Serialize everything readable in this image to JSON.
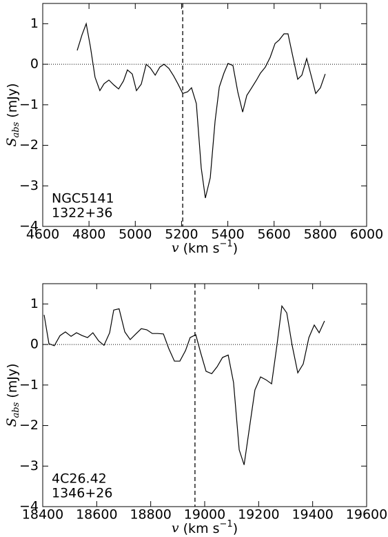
{
  "chart_data": [
    {
      "type": "line",
      "color": "#000000",
      "xlabel": [
        "v",
        " (km s",
        "−1",
        ")"
      ],
      "ylabel": [
        "S",
        "abs",
        " (mJy)"
      ],
      "annotations": [
        "NGC5141",
        "1322+36"
      ],
      "reference_x": 5205,
      "reference_y": 0,
      "x": [
        4749,
        4770,
        4788,
        4806,
        4826,
        4847,
        4865,
        4886,
        4907,
        4928,
        4949,
        4966,
        4987,
        5005,
        5026,
        5047,
        5065,
        5086,
        5106,
        5124,
        5145,
        5166,
        5184,
        5205,
        5226,
        5243,
        5264,
        5285,
        5303,
        5324,
        5345,
        5363,
        5383,
        5401,
        5422,
        5443,
        5464,
        5482,
        5503,
        5524,
        5541,
        5562,
        5583,
        5604,
        5622,
        5643,
        5660,
        5681,
        5702,
        5720,
        5741,
        5762,
        5780,
        5800,
        5821
      ],
      "values": [
        0.34,
        0.73,
        1.0,
        0.43,
        -0.32,
        -0.65,
        -0.48,
        -0.39,
        -0.51,
        -0.61,
        -0.41,
        -0.14,
        -0.24,
        -0.65,
        -0.49,
        0.0,
        -0.09,
        -0.27,
        -0.07,
        0.0,
        -0.1,
        -0.29,
        -0.48,
        -0.72,
        -0.68,
        -0.58,
        -0.97,
        -2.56,
        -3.3,
        -2.8,
        -1.4,
        -0.56,
        -0.22,
        0.02,
        -0.03,
        -0.68,
        -1.18,
        -0.77,
        -0.58,
        -0.39,
        -0.22,
        -0.07,
        0.17,
        0.51,
        0.6,
        0.75,
        0.75,
        0.19,
        -0.37,
        -0.27,
        0.14,
        -0.32,
        -0.72,
        -0.58,
        -0.24
      ],
      "xlim": [
        4600,
        6000
      ],
      "xticks": [
        4600,
        4800,
        5000,
        5200,
        5400,
        5600,
        5800,
        6000
      ],
      "ylim": [
        -4,
        1.5
      ],
      "yticks": [
        {
          "value": -4,
          "label": "−4"
        },
        {
          "value": -3,
          "label": "−3"
        },
        {
          "value": -2,
          "label": "−2"
        },
        {
          "value": -1,
          "label": "−1"
        },
        0,
        1
      ]
    },
    {
      "type": "line",
      "color": "#000000",
      "xlabel": [
        "v",
        " (km s",
        "−1",
        ")"
      ],
      "ylabel": [
        "S",
        "abs",
        " (mJy)"
      ],
      "annotations": [
        "4C26.42",
        "1346+26"
      ],
      "reference_x": 18964,
      "reference_y": 0,
      "x": [
        18405,
        18423,
        18443,
        18464,
        18484,
        18505,
        18525,
        18546,
        18566,
        18586,
        18607,
        18627,
        18648,
        18663,
        18683,
        18704,
        18724,
        18745,
        18765,
        18786,
        18806,
        18826,
        18847,
        18867,
        18888,
        18908,
        18929,
        18946,
        18967,
        18985,
        19005,
        19026,
        19046,
        19066,
        19087,
        19107,
        19128,
        19146,
        19166,
        19186,
        19207,
        19227,
        19248,
        19268,
        19286,
        19304,
        19324,
        19345,
        19365,
        19386,
        19406,
        19424,
        19444
      ],
      "values": [
        0.73,
        0.02,
        -0.03,
        0.22,
        0.31,
        0.2,
        0.29,
        0.22,
        0.17,
        0.29,
        0.09,
        -0.02,
        0.29,
        0.85,
        0.88,
        0.31,
        0.12,
        0.26,
        0.39,
        0.36,
        0.27,
        0.27,
        0.26,
        -0.1,
        -0.41,
        -0.41,
        -0.15,
        0.17,
        0.24,
        -0.2,
        -0.66,
        -0.72,
        -0.55,
        -0.32,
        -0.26,
        -0.94,
        -2.6,
        -2.97,
        -2.05,
        -1.12,
        -0.8,
        -0.87,
        -0.97,
        0.0,
        0.95,
        0.78,
        -0.02,
        -0.7,
        -0.48,
        0.17,
        0.48,
        0.29,
        0.58
      ],
      "xlim": [
        18400,
        19600
      ],
      "xticks": [
        18400,
        18600,
        18800,
        19000,
        19200,
        19400,
        19600
      ],
      "ylim": [
        -4,
        1.5
      ],
      "yticks": [
        {
          "value": -4,
          "label": "−4"
        },
        {
          "value": -3,
          "label": "−3"
        },
        {
          "value": -2,
          "label": "−2"
        },
        {
          "value": -1,
          "label": "−1"
        },
        0,
        1
      ]
    }
  ]
}
